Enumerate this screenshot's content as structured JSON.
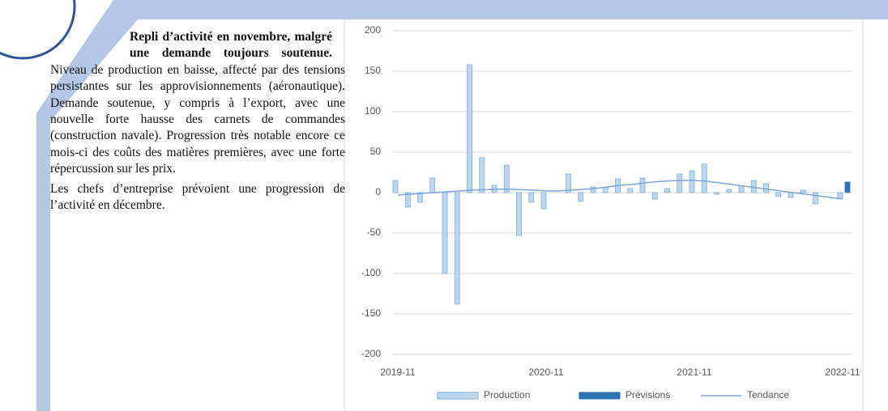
{
  "text": {
    "heading": "Repli d’activité en novembre, malgré une demande toujours soutenue.",
    "paragraphs": [
      "Niveau de production en baisse, affecté par des tensions persistantes sur les approvisionnements (aéronautique). Demande soutenue, y compris à l’export, avec une nouvelle forte hausse des carnets de commandes (construction navale). Progression très notable encore ce mois-ci des coûts des matières premières, avec une forte répercussion sur les prix.",
      "Les chefs d’entreprise prévoient une progression de l’activité en décembre."
    ]
  },
  "chart_data": {
    "type": "bar",
    "categories": [
      "2019-11",
      null,
      null,
      null,
      null,
      null,
      null,
      null,
      null,
      null,
      null,
      null,
      "2020-11",
      null,
      null,
      null,
      null,
      null,
      null,
      null,
      null,
      null,
      null,
      null,
      "2021-11",
      null,
      null,
      null,
      null,
      null,
      null,
      null,
      null,
      null,
      null,
      null,
      "2022-11"
    ],
    "series": [
      {
        "name": "Production",
        "color": "#bdd7ee",
        "values": [
          15,
          -18,
          -12,
          18,
          -100,
          -138,
          158,
          43,
          9,
          34,
          -53,
          -12,
          -20,
          0,
          23,
          -11,
          7,
          6,
          17,
          5,
          18,
          -8,
          5,
          23,
          27,
          35,
          -2,
          4,
          8,
          15,
          11,
          -5,
          -6,
          3,
          -14,
          0,
          -8
        ]
      },
      {
        "name": "Prévisions",
        "color": "#2e75b6",
        "values": [
          null,
          null,
          null,
          null,
          null,
          null,
          null,
          null,
          null,
          null,
          null,
          null,
          null,
          null,
          null,
          null,
          null,
          null,
          null,
          null,
          null,
          null,
          null,
          null,
          null,
          null,
          null,
          null,
          null,
          null,
          null,
          null,
          null,
          null,
          null,
          null,
          13
        ]
      },
      {
        "name": "Tendance",
        "type": "line",
        "color": "#7ea6d8",
        "values": [
          -3,
          -2,
          -1,
          0,
          1,
          2,
          3,
          3.5,
          4,
          4,
          3.5,
          3,
          2,
          2,
          3,
          4,
          5,
          7,
          9,
          10,
          12,
          13.5,
          14.5,
          15,
          15,
          14,
          12,
          10,
          8,
          6,
          4,
          2,
          0,
          -2,
          -4,
          -6,
          -8
        ]
      }
    ],
    "ylim": [
      -200,
      200
    ],
    "yticks": [
      -200,
      -150,
      -100,
      -50,
      0,
      50,
      100,
      150,
      200
    ],
    "grid": true,
    "legend": "bottom"
  }
}
